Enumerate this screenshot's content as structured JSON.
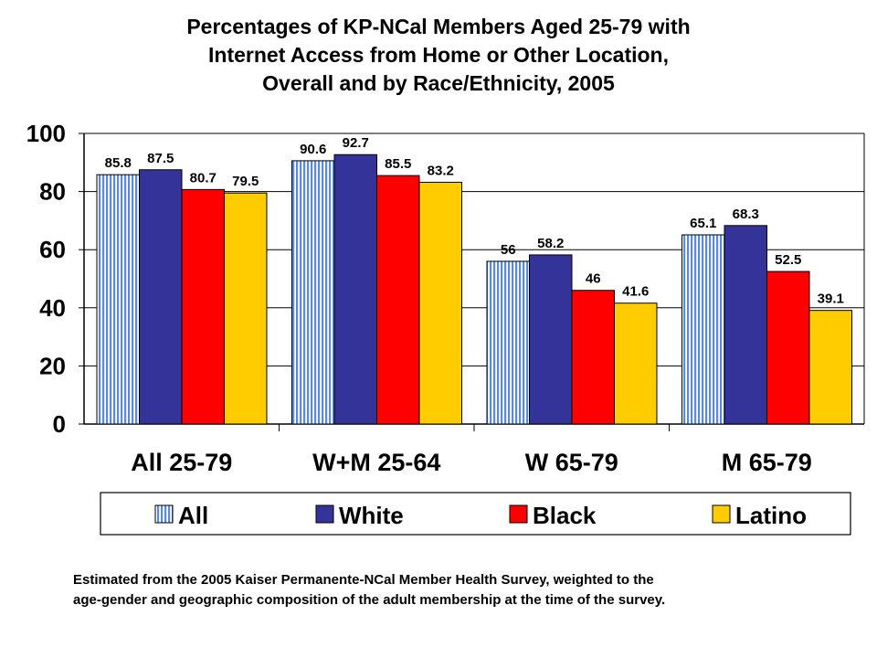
{
  "title_lines": [
    "Percentages of KP-NCal Members Aged 25-79 with",
    "Internet Access from Home or Other Location,",
    "Overall and by Race/Ethnicity, 2005"
  ],
  "footnote_lines": [
    "Estimated from the 2005 Kaiser Permanente-NCal Member Health Survey, weighted to the",
    "age-gender and geographic composition of the adult membership at the time of the survey."
  ],
  "chart_data": {
    "type": "bar",
    "categories": [
      "All 25-79",
      "W+M 25-64",
      "W 65-79",
      "M 65-79"
    ],
    "series": [
      {
        "name": "All",
        "color": "#a9c4ec",
        "pattern": "vertical-stripes",
        "values": [
          85.8,
          90.6,
          56,
          65.1
        ],
        "labels": [
          "85.8",
          "90.6",
          "56",
          "65.1"
        ]
      },
      {
        "name": "White",
        "color": "#333399",
        "values": [
          87.5,
          92.7,
          58.2,
          68.3
        ],
        "labels": [
          "87.5",
          "92.7",
          "58.2",
          "68.3"
        ]
      },
      {
        "name": "Black",
        "color": "#ff0000",
        "values": [
          80.7,
          85.5,
          46,
          52.5
        ],
        "labels": [
          "80.7",
          "85.5",
          "46",
          "52.5"
        ]
      },
      {
        "name": "Latino",
        "color": "#ffcc00",
        "values": [
          79.5,
          83.2,
          41.6,
          39.1
        ],
        "labels": [
          "79.5",
          "83.2",
          "41.6",
          "39.1"
        ]
      }
    ],
    "yticks": [
      0,
      20,
      40,
      60,
      80,
      100
    ],
    "ylim": [
      0,
      100
    ],
    "grid": true,
    "legend": "bottom",
    "xlabel": "",
    "ylabel": ""
  }
}
